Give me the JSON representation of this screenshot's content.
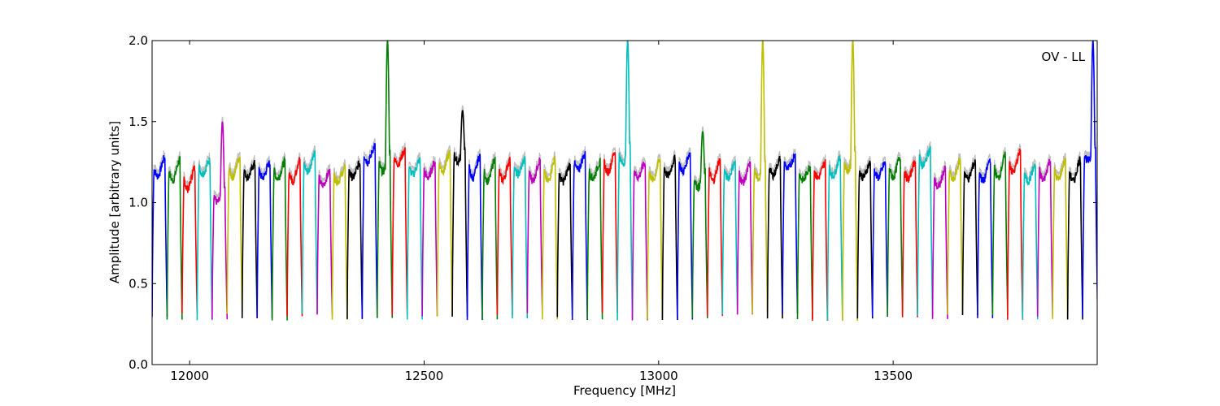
{
  "chart_data": {
    "type": "line",
    "title": "",
    "annotation": "OV - LL",
    "xlabel": "Frequency [MHz]",
    "ylabel": "Amplitude [arbitrary units]",
    "xlim": [
      11920,
      13935
    ],
    "ylim": [
      0.0,
      2.0
    ],
    "xticks": [
      12000,
      12500,
      13000,
      13500
    ],
    "yticks": [
      0.0,
      0.5,
      1.0,
      1.5,
      2.0
    ],
    "xtick_labels": [
      "12000",
      "12500",
      "13000",
      "13500"
    ],
    "ytick_labels": [
      "0.0",
      "0.5",
      "1.0",
      "1.5",
      "2.0"
    ],
    "grid": false,
    "legend": "none",
    "color_cycle": [
      "#0000ff",
      "#007f00",
      "#ff0000",
      "#00bfbf",
      "#bf00bf",
      "#bfbf00",
      "#000000"
    ],
    "shadow_color": "#bfbfbf",
    "channel_width_mhz": 32,
    "channels": [
      {
        "start": 11920,
        "color": "#0000ff",
        "level": 1.22
      },
      {
        "start": 11952,
        "color": "#007f00",
        "level": 1.2
      },
      {
        "start": 11984,
        "color": "#ff0000",
        "level": 1.15
      },
      {
        "start": 12016,
        "color": "#00bfbf",
        "level": 1.22
      },
      {
        "start": 12048,
        "color": "#bf00bf",
        "level": 1.05,
        "spike": 1.5
      },
      {
        "start": 12080,
        "color": "#bfbf00",
        "level": 1.22
      },
      {
        "start": 12112,
        "color": "#000000",
        "level": 1.2
      },
      {
        "start": 12144,
        "color": "#0000ff",
        "level": 1.2
      },
      {
        "start": 12176,
        "color": "#007f00",
        "level": 1.2
      },
      {
        "start": 12208,
        "color": "#ff0000",
        "level": 1.2
      },
      {
        "start": 12240,
        "color": "#00bfbf",
        "level": 1.25
      },
      {
        "start": 12272,
        "color": "#bf00bf",
        "level": 1.15
      },
      {
        "start": 12304,
        "color": "#bfbf00",
        "level": 1.17
      },
      {
        "start": 12336,
        "color": "#000000",
        "level": 1.2
      },
      {
        "start": 12368,
        "color": "#0000ff",
        "level": 1.3
      },
      {
        "start": 12400,
        "color": "#007f00",
        "level": 1.25,
        "spike": 2.0
      },
      {
        "start": 12432,
        "color": "#ff0000",
        "level": 1.28
      },
      {
        "start": 12464,
        "color": "#00bfbf",
        "level": 1.22
      },
      {
        "start": 12496,
        "color": "#bf00bf",
        "level": 1.2
      },
      {
        "start": 12528,
        "color": "#bfbf00",
        "level": 1.25
      },
      {
        "start": 12560,
        "color": "#000000",
        "level": 1.3,
        "spike": 1.57
      },
      {
        "start": 12592,
        "color": "#0000ff",
        "level": 1.22
      },
      {
        "start": 12624,
        "color": "#007f00",
        "level": 1.2
      },
      {
        "start": 12656,
        "color": "#ff0000",
        "level": 1.2
      },
      {
        "start": 12688,
        "color": "#00bfbf",
        "level": 1.22
      },
      {
        "start": 12720,
        "color": "#bf00bf",
        "level": 1.2
      },
      {
        "start": 12752,
        "color": "#bfbf00",
        "level": 1.2
      },
      {
        "start": 12784,
        "color": "#000000",
        "level": 1.18
      },
      {
        "start": 12816,
        "color": "#0000ff",
        "level": 1.25
      },
      {
        "start": 12848,
        "color": "#007f00",
        "level": 1.2
      },
      {
        "start": 12880,
        "color": "#ff0000",
        "level": 1.25
      },
      {
        "start": 12912,
        "color": "#00bfbf",
        "level": 1.3,
        "spike": 2.0
      },
      {
        "start": 12944,
        "color": "#bf00bf",
        "level": 1.2
      },
      {
        "start": 12976,
        "color": "#bfbf00",
        "level": 1.2
      },
      {
        "start": 13008,
        "color": "#000000",
        "level": 1.22
      },
      {
        "start": 13040,
        "color": "#0000ff",
        "level": 1.25
      },
      {
        "start": 13072,
        "color": "#007f00",
        "level": 1.15,
        "spike": 1.44
      },
      {
        "start": 13104,
        "color": "#ff0000",
        "level": 1.2
      },
      {
        "start": 13136,
        "color": "#00bfbf",
        "level": 1.2
      },
      {
        "start": 13168,
        "color": "#bf00bf",
        "level": 1.18
      },
      {
        "start": 13200,
        "color": "#bfbf00",
        "level": 1.2,
        "spike": 2.0
      },
      {
        "start": 13232,
        "color": "#000000",
        "level": 1.22
      },
      {
        "start": 13264,
        "color": "#0000ff",
        "level": 1.25
      },
      {
        "start": 13296,
        "color": "#007f00",
        "level": 1.18
      },
      {
        "start": 13328,
        "color": "#ff0000",
        "level": 1.2
      },
      {
        "start": 13360,
        "color": "#00bfbf",
        "level": 1.22
      },
      {
        "start": 13392,
        "color": "#bfbf00",
        "level": 1.25,
        "spike": 2.0
      },
      {
        "start": 13424,
        "color": "#000000",
        "level": 1.2
      },
      {
        "start": 13456,
        "color": "#0000ff",
        "level": 1.2
      },
      {
        "start": 13488,
        "color": "#007f00",
        "level": 1.22
      },
      {
        "start": 13520,
        "color": "#ff0000",
        "level": 1.2
      },
      {
        "start": 13552,
        "color": "#00bfbf",
        "level": 1.28
      },
      {
        "start": 13584,
        "color": "#bf00bf",
        "level": 1.15
      },
      {
        "start": 13616,
        "color": "#bfbf00",
        "level": 1.2
      },
      {
        "start": 13648,
        "color": "#000000",
        "level": 1.2
      },
      {
        "start": 13680,
        "color": "#0000ff",
        "level": 1.2
      },
      {
        "start": 13712,
        "color": "#007f00",
        "level": 1.22
      },
      {
        "start": 13744,
        "color": "#ff0000",
        "level": 1.25
      },
      {
        "start": 13776,
        "color": "#00bfbf",
        "level": 1.18
      },
      {
        "start": 13808,
        "color": "#bf00bf",
        "level": 1.2
      },
      {
        "start": 13840,
        "color": "#bfbf00",
        "level": 1.2
      },
      {
        "start": 13872,
        "color": "#000000",
        "level": 1.2
      },
      {
        "start": 13904,
        "color": "#0000ff",
        "level": 1.3,
        "spike": 2.0
      }
    ]
  }
}
